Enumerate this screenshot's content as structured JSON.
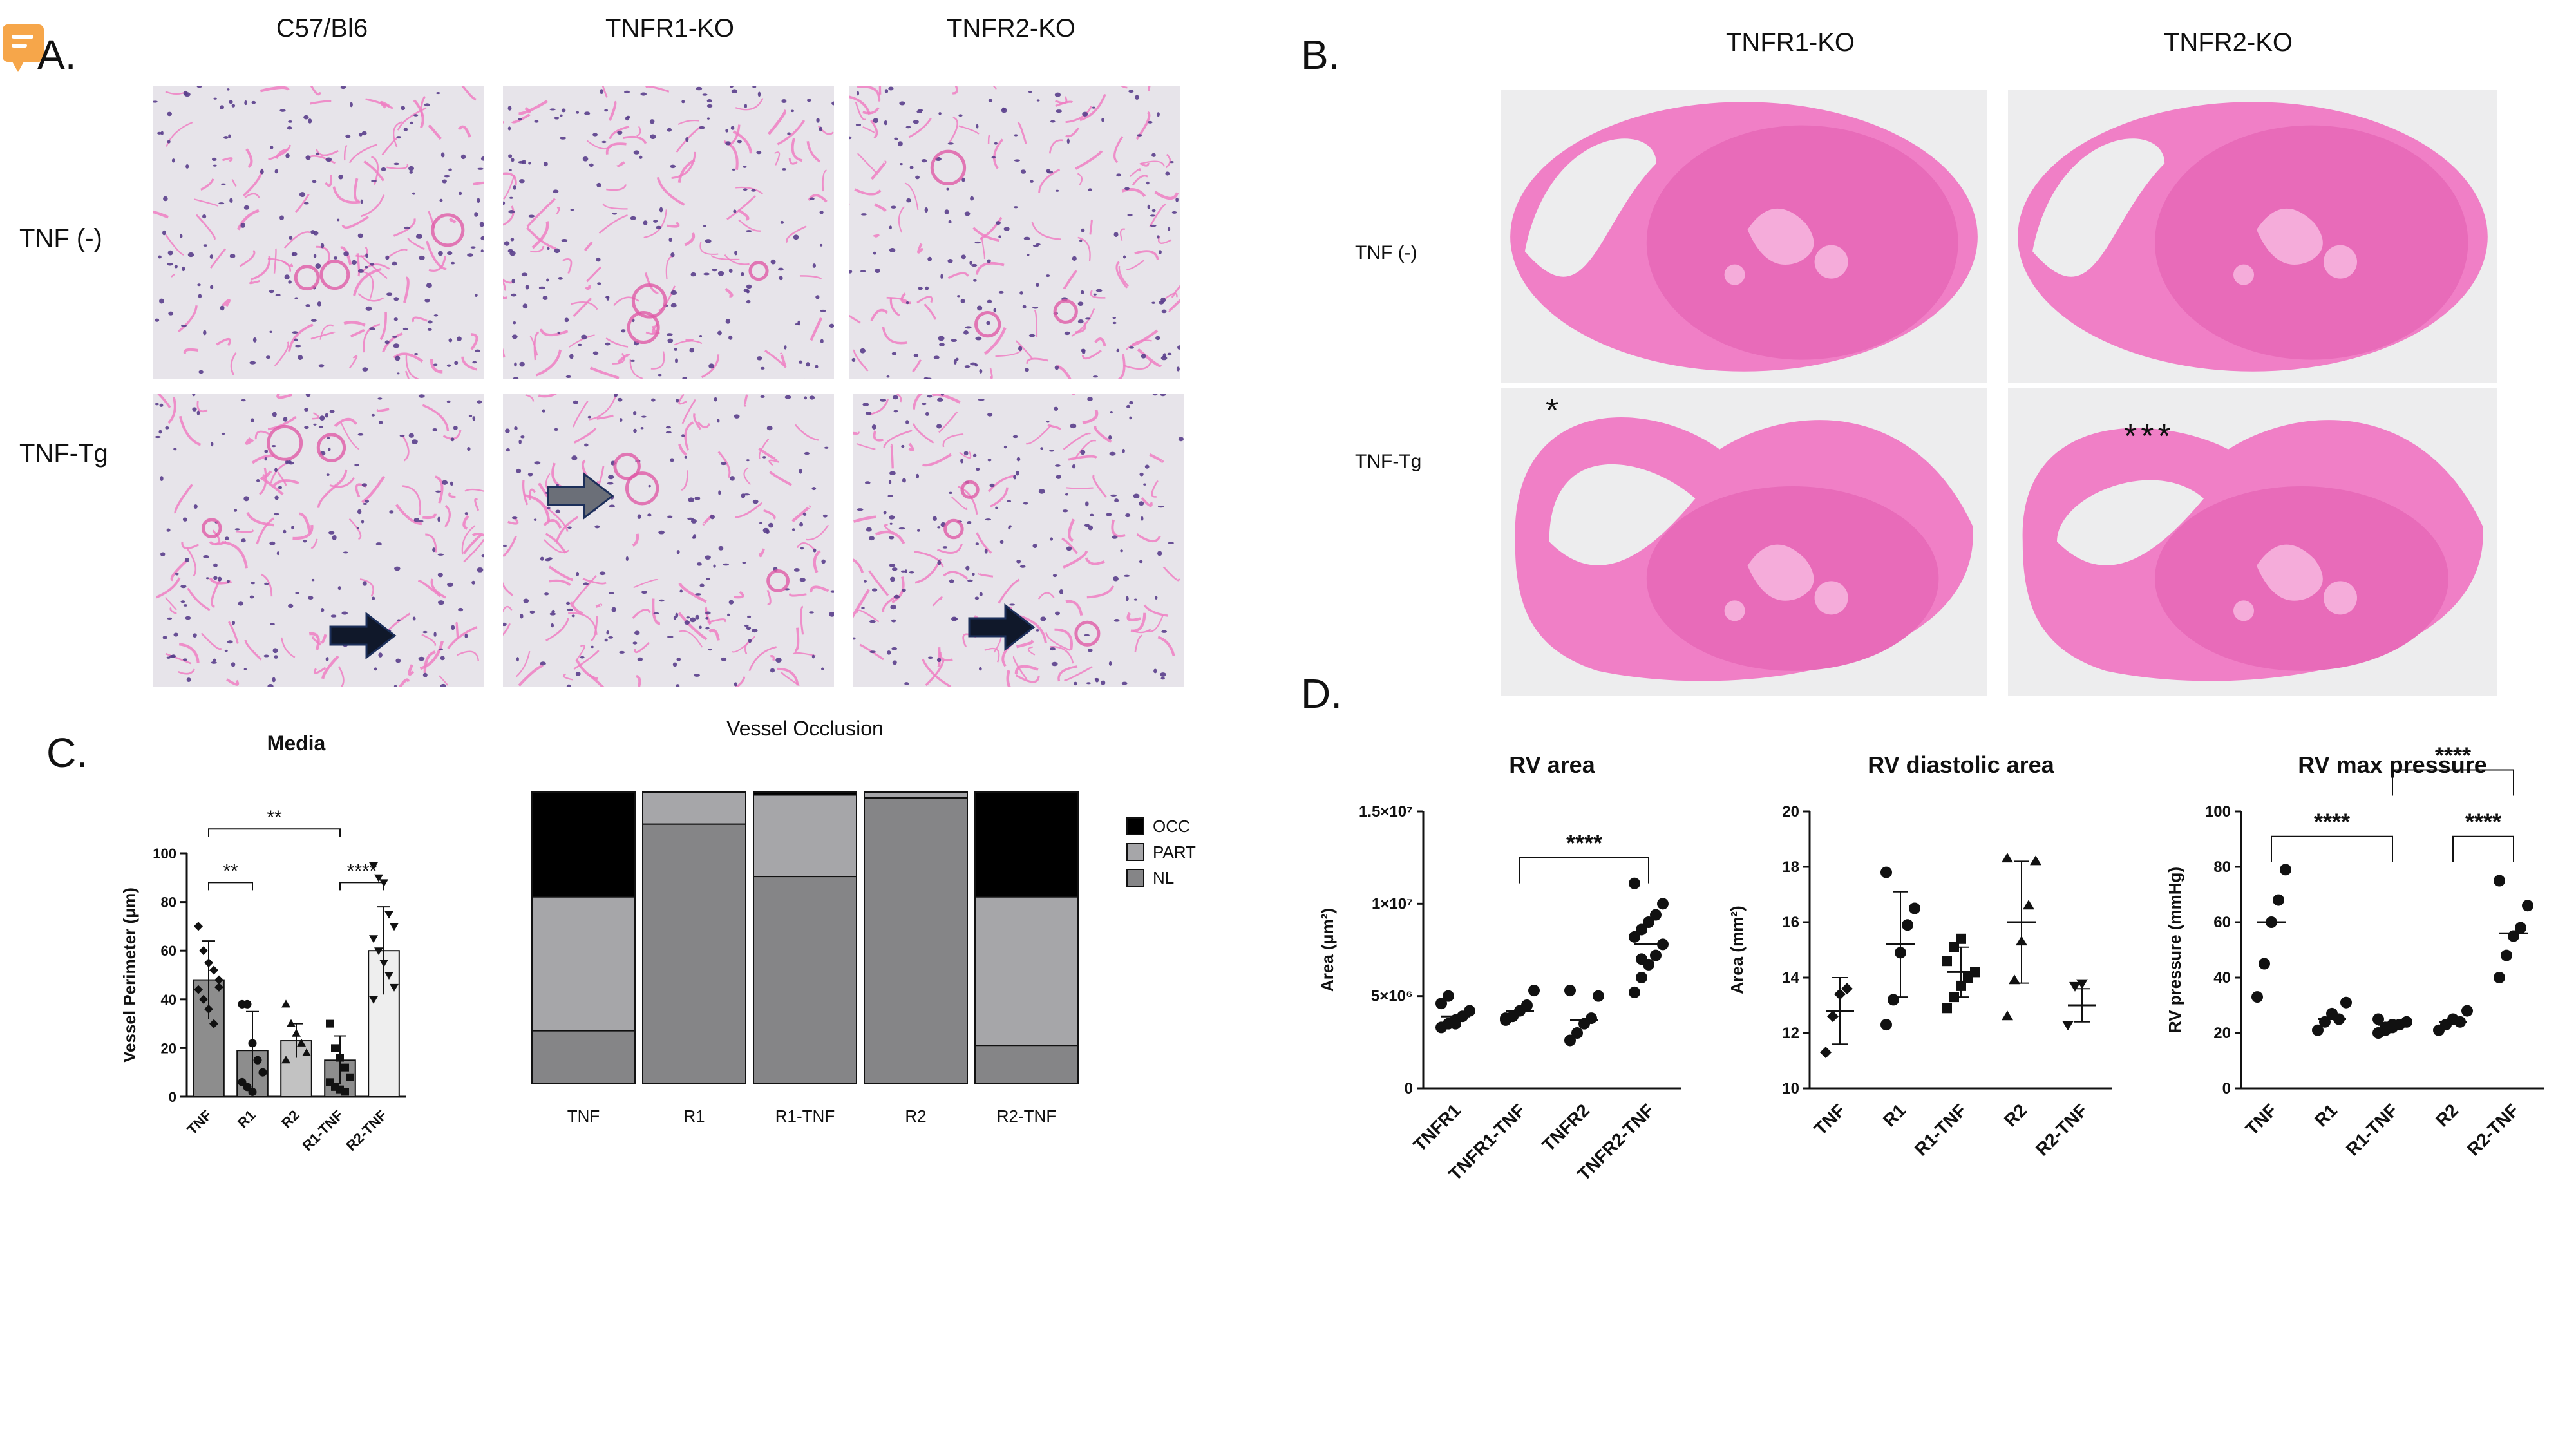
{
  "panel_letters": {
    "a": "A.",
    "b": "B.",
    "c": "C.",
    "d": "D."
  },
  "panel_a": {
    "col_heads": [
      "C57/Bl6",
      "TNFR1-KO",
      "TNFR2-KO"
    ],
    "row_labels": [
      "TNF (-)",
      "TNF-Tg"
    ]
  },
  "panel_b": {
    "col_heads": [
      "TNFR1-KO",
      "TNFR2-KO"
    ],
    "row_labels": [
      "TNF (-)",
      "TNF-Tg"
    ],
    "annotations": [
      "*",
      "***"
    ]
  },
  "colors": {
    "tissue_pink": "#ee7fc3",
    "tissue_bg": "#e7e4ea",
    "nuclei": "#5a3e8c",
    "arrow_dark": "#10182a",
    "arrow_gray": "#6b6f78",
    "occ": "#000000",
    "part": "#a6a6a9",
    "nl": "#858587"
  },
  "chart_data": [
    {
      "id": "media",
      "type": "bar",
      "title": "Media",
      "ylabel": "Vessel  Perimeter (μm)",
      "ylim": [
        0,
        100
      ],
      "yticks": [
        "0",
        "20",
        "40",
        "60",
        "80",
        "100"
      ],
      "categories": [
        "TNF",
        "R1",
        "R2",
        "R1-TNF",
        "R2-TNF"
      ],
      "values": [
        48,
        19,
        23,
        15,
        60
      ],
      "errors": [
        16,
        16,
        7,
        10,
        18
      ],
      "bar_colors": [
        "#8d8d8d",
        "#8d8d8d",
        "#c2c2c2",
        "#8d8d8d",
        "#eeeeee"
      ],
      "points": [
        [
          70,
          60,
          55,
          52,
          48,
          44,
          40,
          36,
          30,
          45
        ],
        [
          38,
          38,
          22,
          15,
          10,
          6,
          4,
          2
        ],
        [
          38,
          30,
          26,
          22,
          18,
          15
        ],
        [
          30,
          20,
          16,
          12,
          8,
          6,
          4,
          3,
          2
        ],
        [
          95,
          90,
          88,
          75,
          70,
          65,
          60,
          55,
          50,
          45,
          40
        ]
      ],
      "markers": [
        "diamond",
        "circle",
        "triangle",
        "square",
        "triangle-down"
      ],
      "significance": [
        {
          "from": 0,
          "to": 1,
          "label": "**",
          "y": 88
        },
        {
          "from": 0,
          "to": 3,
          "label": "**",
          "y": 110
        },
        {
          "from": 3,
          "to": 4,
          "label": "****",
          "y": 88
        }
      ]
    },
    {
      "id": "occlusion",
      "type": "bar",
      "stacked": true,
      "title": "Vessel Occlusion",
      "categories": [
        "TNF",
        "R1",
        "R1-TNF",
        "R2",
        "R2-TNF"
      ],
      "series": [
        {
          "name": "OCC",
          "values": [
            0.36,
            0.0,
            0.01,
            0.0,
            0.36
          ]
        },
        {
          "name": "PART",
          "values": [
            0.46,
            0.11,
            0.28,
            0.02,
            0.51
          ]
        },
        {
          "name": "NL",
          "values": [
            0.18,
            0.89,
            0.71,
            0.98,
            0.13
          ]
        }
      ],
      "legend": [
        "OCC",
        "PART",
        "NL"
      ],
      "legend_position": "right"
    },
    {
      "id": "rv_area",
      "type": "scatter",
      "title": "RV area",
      "ylabel": "Area  (μm²)",
      "ylim": [
        0,
        15000000
      ],
      "yticks": [
        "0",
        "5×10⁶",
        "1×10⁷",
        "1.5×10⁷"
      ],
      "categories": [
        "TNFR1",
        "TNFR1-TNF",
        "TNFR2",
        "TNFR2-TNF"
      ],
      "mean": [
        3900000,
        4200000,
        3700000,
        7800000
      ],
      "sd": [
        0,
        0,
        0,
        0
      ],
      "points": [
        [
          3300000,
          3500000,
          3700000,
          3900000,
          4200000,
          4600000,
          5000000,
          3500000
        ],
        [
          3700000,
          3900000,
          4200000,
          4500000,
          5300000,
          3800000
        ],
        [
          2600000,
          3000000,
          3500000,
          3800000,
          5000000,
          5300000
        ],
        [
          5200000,
          6000000,
          6700000,
          7200000,
          7800000,
          8200000,
          8600000,
          9000000,
          9400000,
          10000000,
          11100000,
          7000000
        ]
      ],
      "markers": [
        "circle",
        "circle",
        "circle",
        "circle"
      ],
      "significance": [
        {
          "from": 1,
          "to": 3,
          "label": "****",
          "y": 12500000
        }
      ]
    },
    {
      "id": "rv_diastolic",
      "type": "scatter",
      "title": "RV diastolic area",
      "ylabel": "Area  (mm²)",
      "ylim": [
        10,
        20
      ],
      "yticks": [
        "10",
        "12",
        "14",
        "16",
        "18",
        "20"
      ],
      "categories": [
        "TNF",
        "R1",
        "R1-TNF",
        "R2",
        "R2-TNF"
      ],
      "mean": [
        12.8,
        15.2,
        14.2,
        16.0,
        13.0
      ],
      "sd": [
        1.2,
        1.9,
        0.9,
        2.2,
        0.6
      ],
      "points": [
        [
          11.3,
          12.6,
          13.4,
          13.6
        ],
        [
          12.3,
          13.2,
          14.9,
          15.9,
          16.5,
          17.8
        ],
        [
          12.9,
          13.3,
          13.7,
          14.0,
          14.2,
          14.6,
          15.1,
          15.4
        ],
        [
          12.6,
          13.9,
          15.3,
          16.6,
          18.2,
          18.3
        ],
        [
          12.3,
          13.7,
          13.8
        ]
      ],
      "markers": [
        "diamond",
        "circle",
        "square",
        "triangle",
        "triangle-down"
      ],
      "significance": []
    },
    {
      "id": "rv_pressure",
      "type": "scatter",
      "title": "RV max pressure",
      "ylabel": "RV pressure  (mmHg)",
      "ylim": [
        0,
        100
      ],
      "yticks": [
        "0",
        "20",
        "40",
        "60",
        "80",
        "100"
      ],
      "categories": [
        "TNF",
        "R1",
        "R1-TNF",
        "R2",
        "R2-TNF"
      ],
      "mean": [
        60,
        25,
        23,
        24,
        56
      ],
      "sd": [
        0,
        0,
        0,
        0,
        0
      ],
      "points": [
        [
          33,
          45,
          60,
          68,
          79
        ],
        [
          21,
          24,
          27,
          25,
          31
        ],
        [
          20,
          21,
          22,
          23,
          24,
          25,
          22,
          23
        ],
        [
          21,
          23,
          25,
          24,
          28
        ],
        [
          40,
          48,
          55,
          58,
          66,
          75
        ]
      ],
      "markers": [
        "circle",
        "circle",
        "circle",
        "circle",
        "circle"
      ],
      "significance": [
        {
          "from": 0,
          "to": 2,
          "label": "****",
          "y": 91
        },
        {
          "from": 2,
          "to": 4,
          "label": "****",
          "y": 115
        },
        {
          "from": 3,
          "to": 4,
          "label": "****",
          "y": 91
        }
      ]
    }
  ]
}
